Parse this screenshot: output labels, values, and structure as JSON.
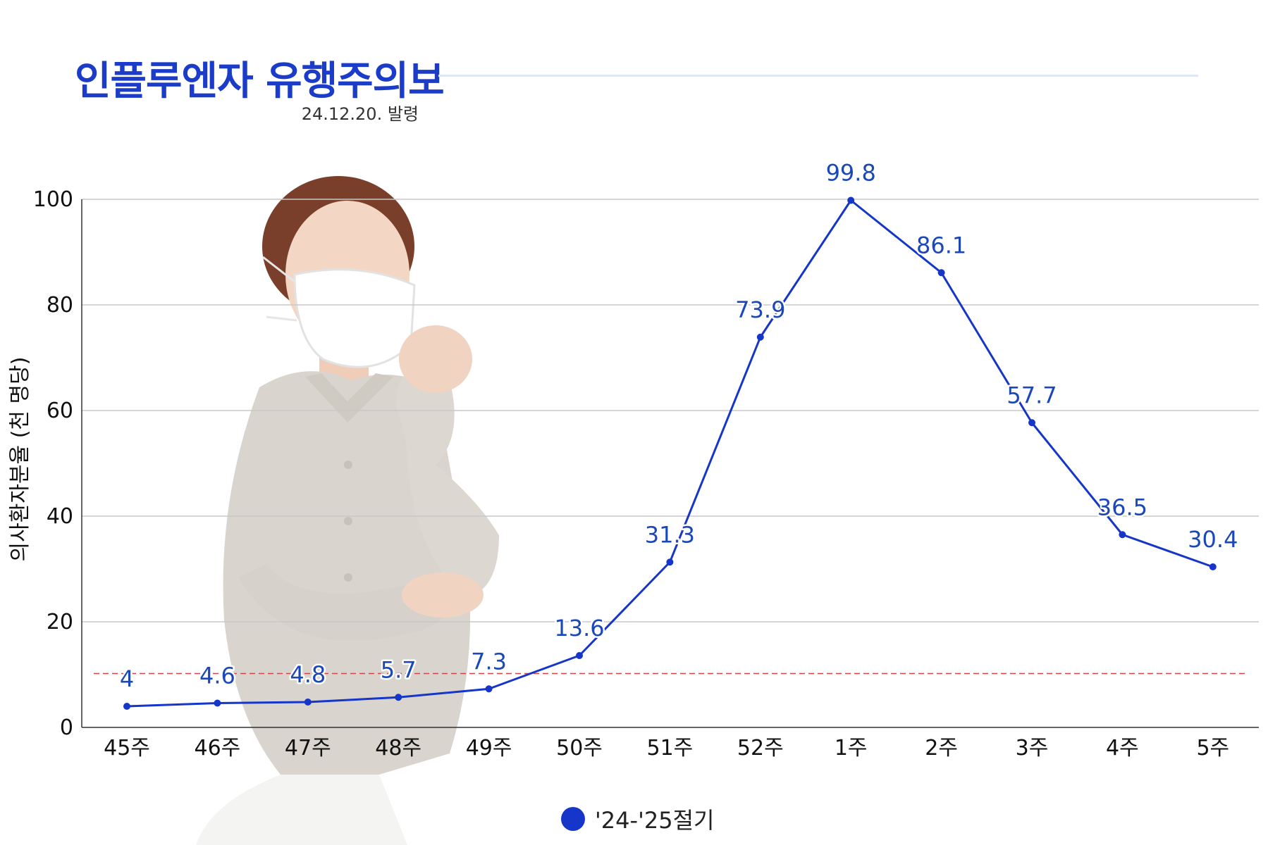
{
  "header": {
    "title": "인플루엔자 유행주의보",
    "subtitle": "24.12.20. 발령"
  },
  "colors": {
    "title": "#1a3cc8",
    "line": "#1536c8",
    "label": "#1b48b8",
    "threshold": "#d04545",
    "grid": "#c8c8c8"
  },
  "chart_data": {
    "type": "line",
    "title": "",
    "xlabel": "",
    "ylabel": "의사환자분율 (천 명당)",
    "categories": [
      "45주",
      "46주",
      "47주",
      "48주",
      "49주",
      "50주",
      "51주",
      "52주",
      "1주",
      "2주",
      "3주",
      "4주",
      "5주"
    ],
    "series": [
      {
        "name": "'24-'25절기",
        "values": [
          4,
          4.6,
          4.8,
          5.7,
          7.3,
          13.6,
          31.3,
          73.9,
          99.8,
          86.1,
          57.7,
          36.5,
          30.4
        ]
      }
    ],
    "value_labels": [
      "4",
      "4.6",
      "4.8",
      "5.7",
      "7.3",
      "13.6",
      "31.3",
      "73.9",
      "99.8",
      "86.1",
      "57.7",
      "36.5",
      "30.4"
    ],
    "yticks": [
      0,
      20,
      40,
      60,
      80,
      100
    ],
    "ytick_labels": [
      "0",
      "20",
      "40",
      "60",
      "80",
      "100"
    ],
    "ylim": [
      0,
      100
    ],
    "grid": true,
    "threshold": 10.2,
    "legend_position": "bottom"
  },
  "legend": {
    "label": "'24-'25절기"
  }
}
